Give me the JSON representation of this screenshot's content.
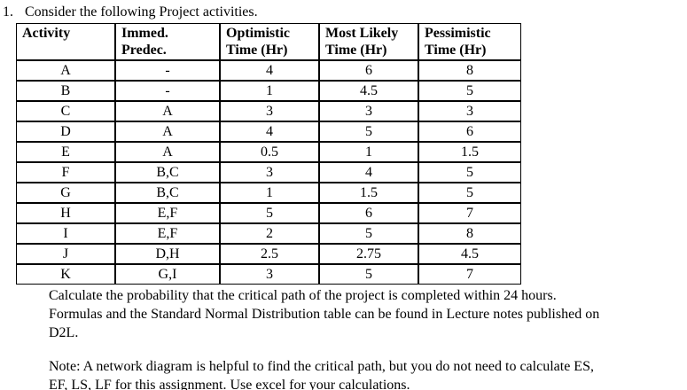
{
  "page": {
    "question_number": "1.",
    "question_title": "Consider the following Project activities."
  },
  "table": {
    "headers": [
      {
        "line1": "Activity",
        "line2": ""
      },
      {
        "line1": "Immed.",
        "line2": "Predec."
      },
      {
        "line1": "Optimistic",
        "line2": "Time (Hr)"
      },
      {
        "line1": "Most Likely",
        "line2": "Time (Hr)"
      },
      {
        "line1": "Pessimistic",
        "line2": "Time (Hr)"
      }
    ],
    "rows": [
      [
        "A",
        "-",
        "4",
        "6",
        "8"
      ],
      [
        "B",
        "-",
        "1",
        "4.5",
        "5"
      ],
      [
        "C",
        "A",
        "3",
        "3",
        "3"
      ],
      [
        "D",
        "A",
        "4",
        "5",
        "6"
      ],
      [
        "E",
        "A",
        "0.5",
        "1",
        "1.5"
      ],
      [
        "F",
        "B,C",
        "3",
        "4",
        "5"
      ],
      [
        "G",
        "B,C",
        "1",
        "1.5",
        "5"
      ],
      [
        "H",
        "E,F",
        "5",
        "6",
        "7"
      ],
      [
        "I",
        "E,F",
        "2",
        "5",
        "8"
      ],
      [
        "J",
        "D,H",
        "2.5",
        "2.75",
        "4.5"
      ],
      [
        "K",
        "G,I",
        "3",
        "5",
        "7"
      ]
    ]
  },
  "instructions": {
    "lines": [
      "Calculate the probability that the critical path of the project is completed within 24 hours.",
      "Formulas and the Standard Normal Distribution table can be found in Lecture notes published on",
      "D2L."
    ]
  },
  "note": {
    "lines": [
      "Note: A network diagram is helpful to find the critical path, but you do not need to calculate ES,",
      "EF, LS, LF for this assignment. Use excel for your calculations."
    ]
  }
}
